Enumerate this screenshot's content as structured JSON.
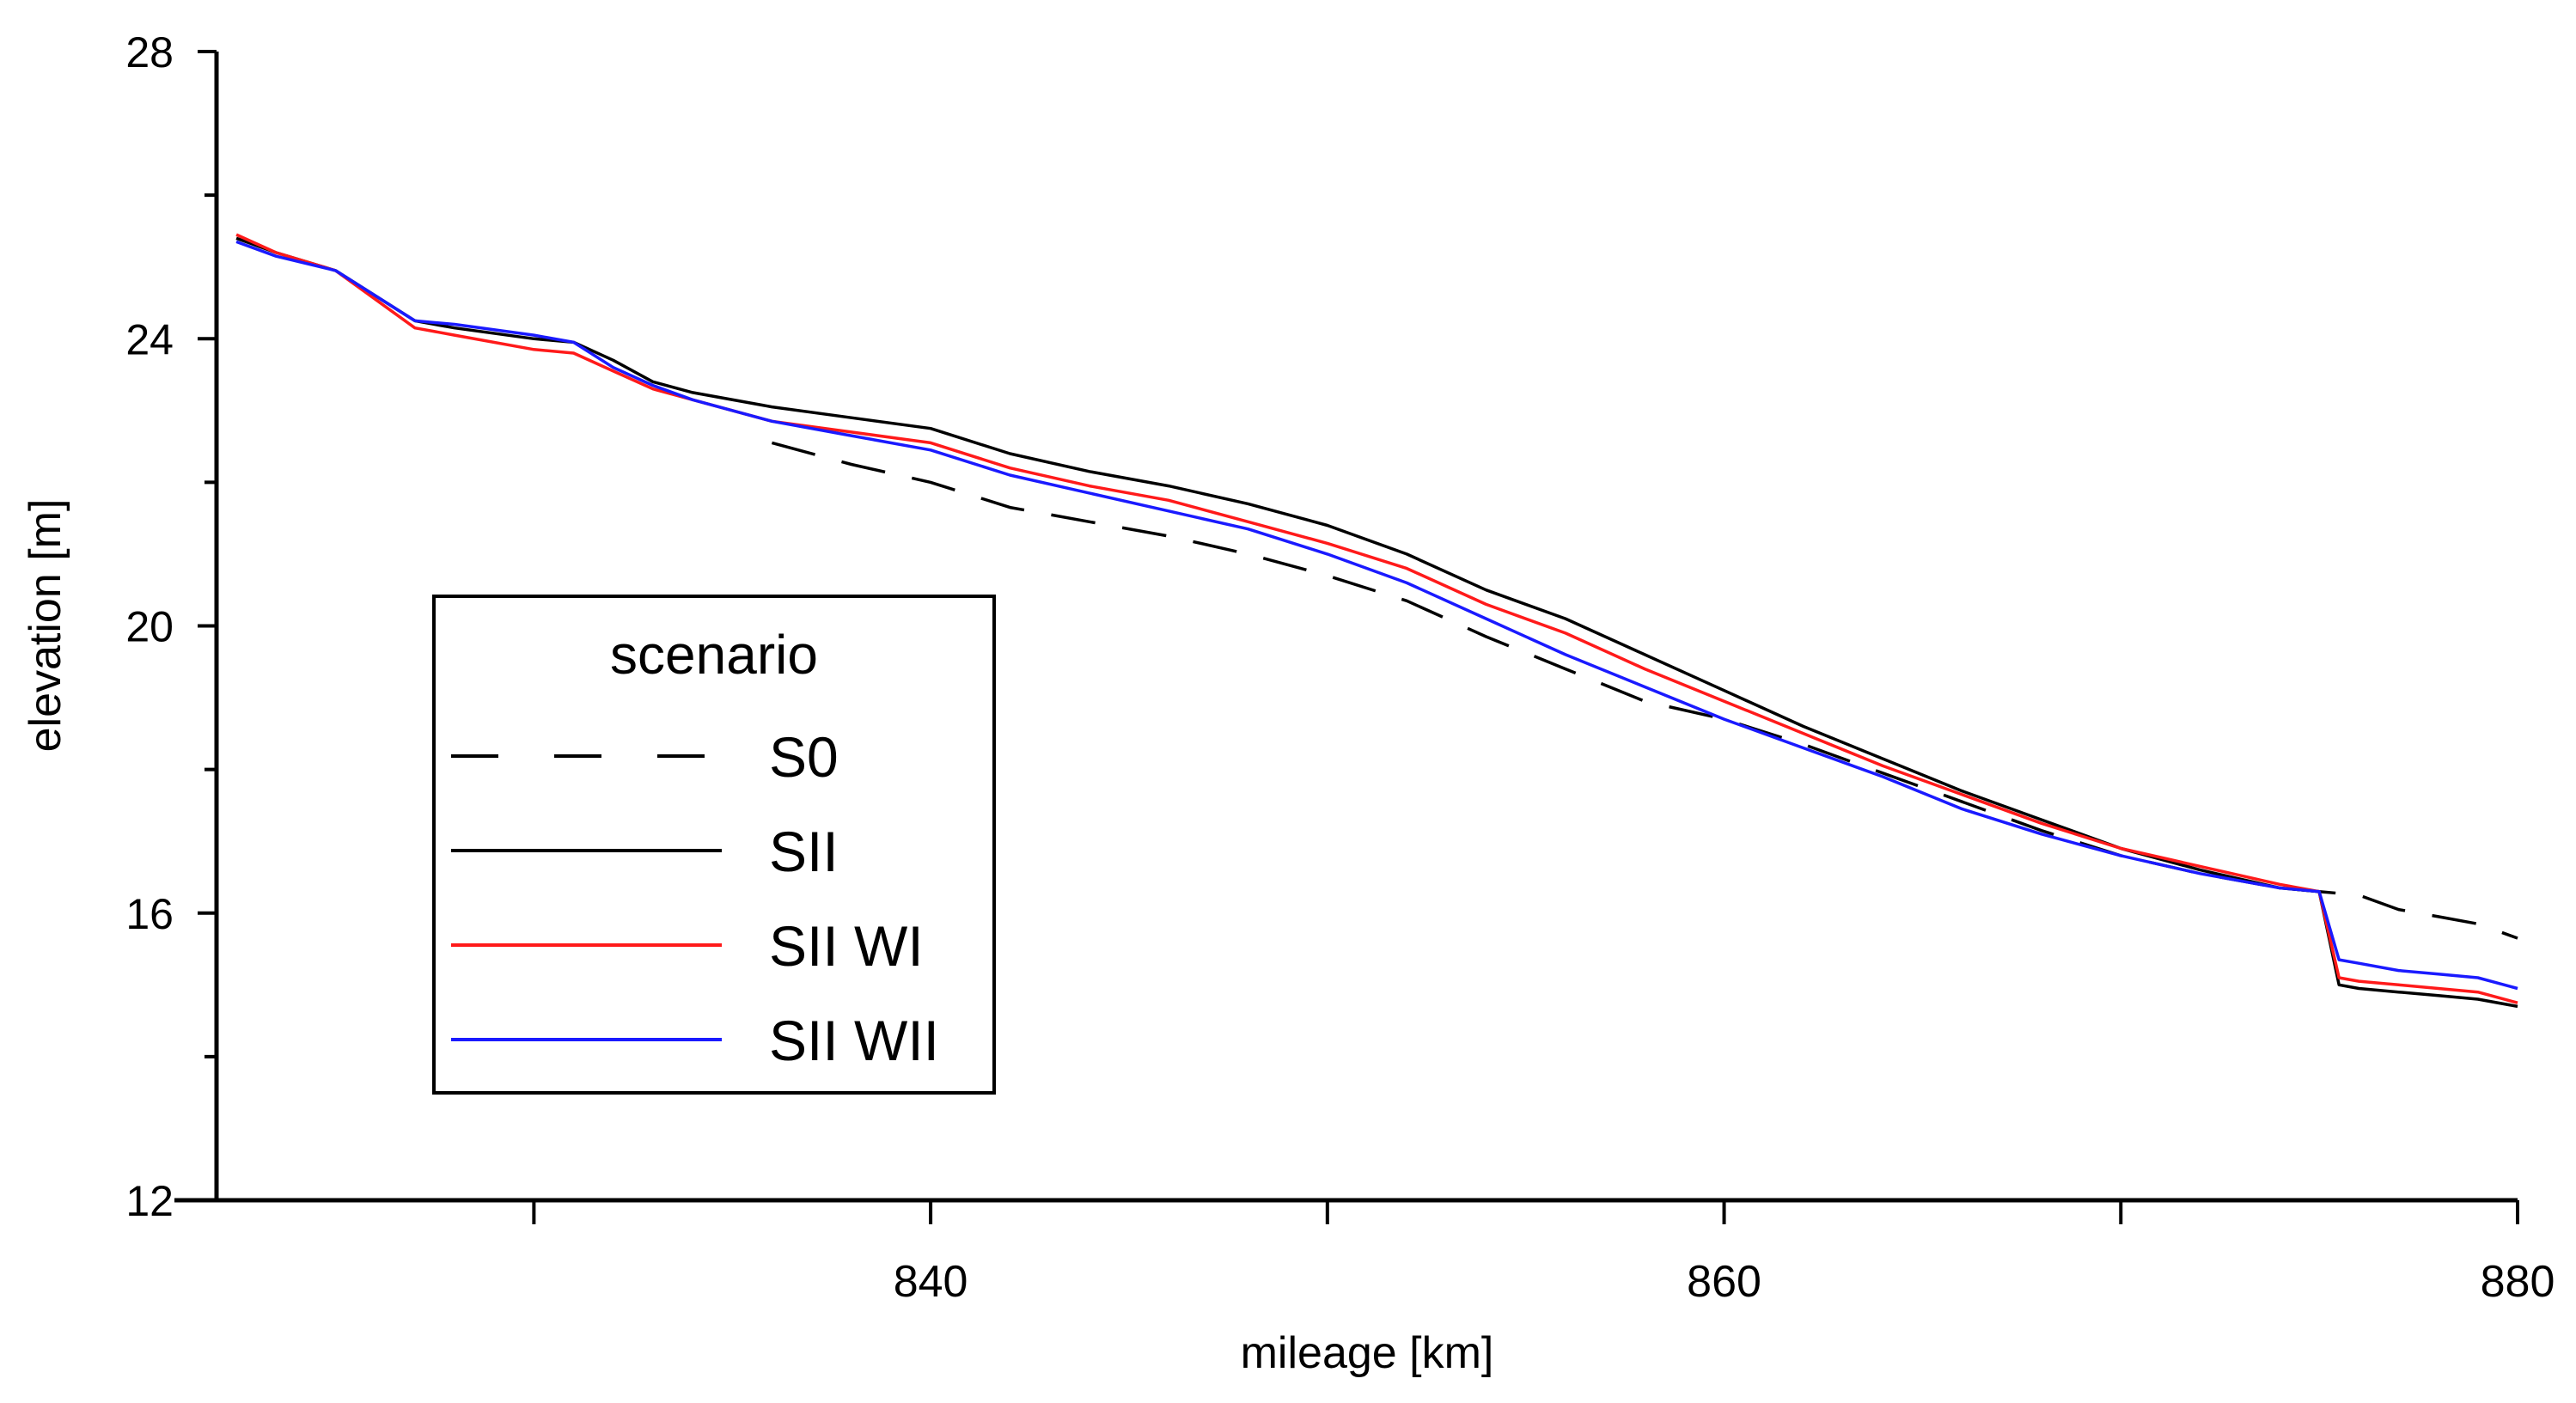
{
  "chart_data": {
    "type": "line",
    "title": "",
    "xlabel": "mileage [km]",
    "ylabel": "elevation [m]",
    "xlim": [
      822,
      880
    ],
    "ylim": [
      12,
      28
    ],
    "xticks": [
      840,
      860,
      880
    ],
    "xminor": [
      830,
      850,
      870
    ],
    "yticks": [
      12,
      16,
      20,
      24,
      28
    ],
    "yminor": [
      14,
      18,
      22,
      26
    ],
    "grid": false,
    "legend": {
      "title": "scenario",
      "position": "center-left"
    },
    "series": [
      {
        "name": "S0",
        "color": "#000000",
        "style": "dashed",
        "x": [
          836,
          838,
          840,
          842,
          844,
          846,
          848,
          850,
          852,
          854,
          856,
          858,
          860,
          862,
          864,
          866,
          868,
          870,
          872,
          874,
          875,
          876,
          877,
          878,
          879,
          880
        ],
        "y": [
          22.55,
          22.25,
          22.0,
          21.65,
          21.45,
          21.25,
          21.0,
          20.7,
          20.35,
          19.85,
          19.4,
          18.95,
          18.7,
          18.35,
          17.95,
          17.55,
          17.15,
          16.8,
          16.55,
          16.35,
          16.3,
          16.25,
          16.05,
          15.95,
          15.85,
          15.65
        ]
      },
      {
        "name": "SII",
        "color": "#000000",
        "style": "solid",
        "x": [
          822.5,
          823.5,
          825,
          827,
          828,
          830,
          831,
          832,
          833,
          834,
          836,
          838,
          840,
          842,
          844,
          846,
          848,
          850,
          852,
          854,
          856,
          858,
          860,
          862,
          864,
          866,
          868,
          870,
          872,
          874,
          875,
          875.5,
          876,
          877,
          878,
          879,
          880
        ],
        "y": [
          25.4,
          25.2,
          24.95,
          24.25,
          24.15,
          24.0,
          23.95,
          23.7,
          23.4,
          23.25,
          23.05,
          22.9,
          22.75,
          22.4,
          22.15,
          21.95,
          21.7,
          21.4,
          21.0,
          20.5,
          20.1,
          19.6,
          19.1,
          18.6,
          18.15,
          17.7,
          17.3,
          16.9,
          16.6,
          16.35,
          16.3,
          15.0,
          14.95,
          14.9,
          14.85,
          14.8,
          14.7
        ]
      },
      {
        "name": "SII WI",
        "color": "#ff1a1a",
        "style": "solid",
        "x": [
          822.5,
          823.5,
          825,
          827,
          828,
          830,
          831,
          832,
          833,
          834,
          836,
          838,
          840,
          842,
          844,
          846,
          848,
          850,
          852,
          854,
          856,
          858,
          860,
          862,
          864,
          866,
          868,
          870,
          872,
          874,
          875,
          875.5,
          876,
          877,
          878,
          879,
          880
        ],
        "y": [
          25.45,
          25.2,
          24.95,
          24.15,
          24.05,
          23.85,
          23.8,
          23.55,
          23.3,
          23.15,
          22.85,
          22.7,
          22.55,
          22.2,
          21.95,
          21.75,
          21.45,
          21.15,
          20.8,
          20.3,
          19.9,
          19.4,
          18.95,
          18.5,
          18.05,
          17.65,
          17.25,
          16.9,
          16.65,
          16.4,
          16.3,
          15.1,
          15.05,
          15.0,
          14.95,
          14.9,
          14.75
        ]
      },
      {
        "name": "SII WII",
        "color": "#1a1aff",
        "style": "solid",
        "x": [
          822.5,
          823.5,
          825,
          827,
          828,
          830,
          831,
          832,
          833,
          834,
          836,
          838,
          840,
          842,
          844,
          846,
          848,
          850,
          852,
          854,
          856,
          858,
          860,
          862,
          864,
          866,
          868,
          870,
          872,
          874,
          875,
          875.5,
          876,
          877,
          878,
          879,
          880
        ],
        "y": [
          25.35,
          25.15,
          24.95,
          24.25,
          24.2,
          24.05,
          23.95,
          23.6,
          23.35,
          23.15,
          22.85,
          22.65,
          22.45,
          22.1,
          21.85,
          21.6,
          21.35,
          21.0,
          20.6,
          20.1,
          19.6,
          19.15,
          18.7,
          18.3,
          17.9,
          17.45,
          17.1,
          16.8,
          16.55,
          16.35,
          16.3,
          15.35,
          15.3,
          15.2,
          15.15,
          15.1,
          14.95
        ]
      }
    ]
  }
}
